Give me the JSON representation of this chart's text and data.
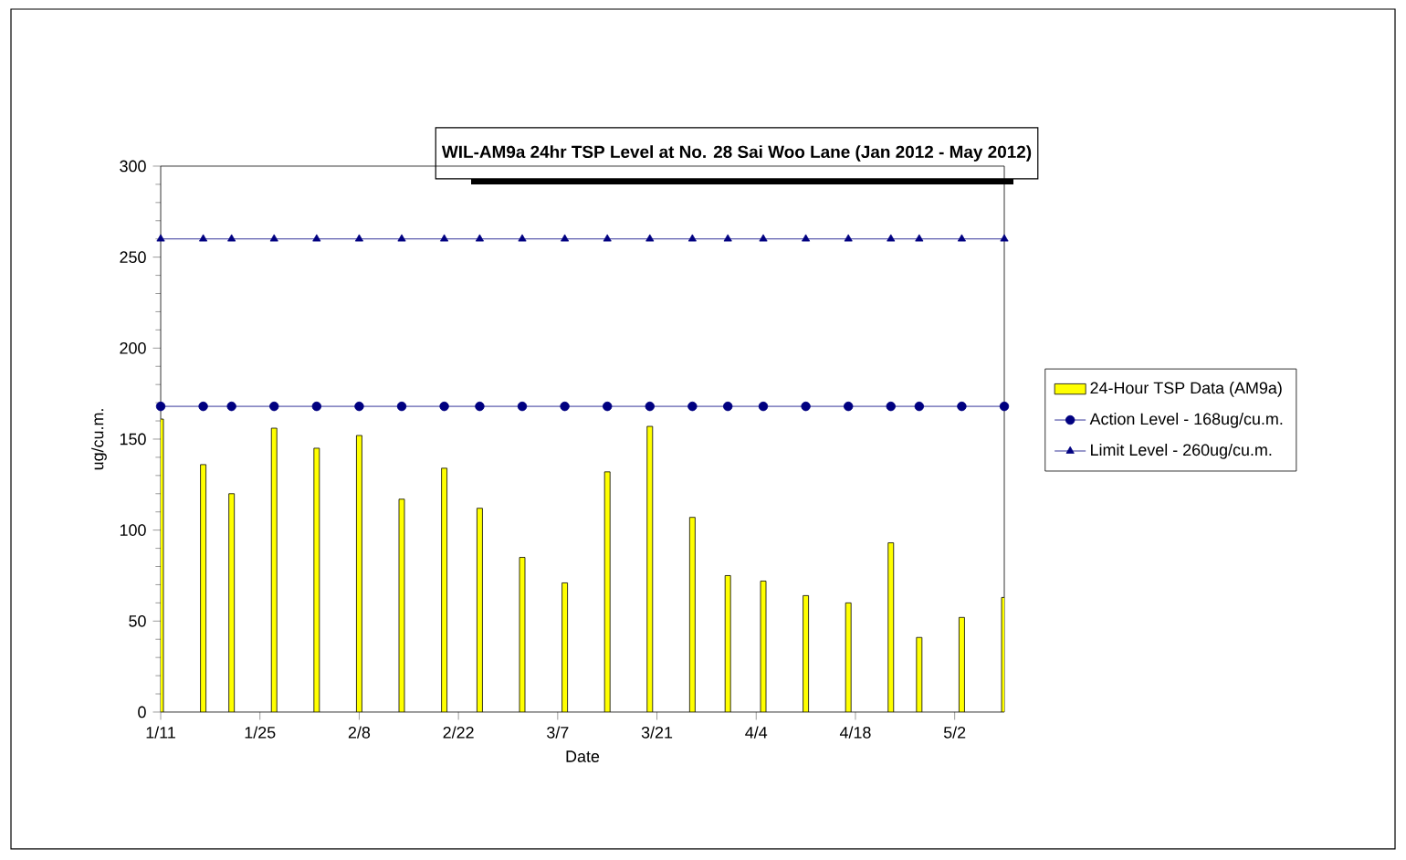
{
  "chart_data": {
    "type": "bar",
    "title": "WIL-AM9a 24hr TSP Level at No. 28 Sai Woo Lane (Jan 2012 - May 2012)",
    "xlabel": "Date",
    "ylabel": "ug/cu.m.",
    "x": [
      "2012-01-11",
      "2012-01-17",
      "2012-01-21",
      "2012-01-27",
      "2012-02-02",
      "2012-02-08",
      "2012-02-14",
      "2012-02-20",
      "2012-02-25",
      "2012-03-02",
      "2012-03-08",
      "2012-03-14",
      "2012-03-20",
      "2012-03-26",
      "2012-03-31",
      "2012-04-05",
      "2012-04-11",
      "2012-04-17",
      "2012-04-23",
      "2012-04-27",
      "2012-05-03",
      "2012-05-09"
    ],
    "series": [
      {
        "name": "24-Hour TSP Data (AM9a)",
        "color": "#ffff00",
        "values": [
          161,
          136,
          120,
          156,
          145,
          152,
          117,
          134,
          112,
          85,
          71,
          132,
          157,
          107,
          75,
          72,
          64,
          60,
          93,
          41,
          52,
          63
        ]
      },
      {
        "type": "line",
        "name": "Action Level - 168ug/cu.m.",
        "color": "#000080",
        "marker": "circle",
        "values": [
          168,
          168,
          168,
          168,
          168,
          168,
          168,
          168,
          168,
          168,
          168,
          168,
          168,
          168,
          168,
          168,
          168,
          168,
          168,
          168,
          168,
          168
        ]
      },
      {
        "type": "line",
        "name": "Limit Level - 260ug/cu.m.",
        "color": "#000080",
        "marker": "triangle",
        "values": [
          260,
          260,
          260,
          260,
          260,
          260,
          260,
          260,
          260,
          260,
          260,
          260,
          260,
          260,
          260,
          260,
          260,
          260,
          260,
          260,
          260,
          260
        ]
      }
    ],
    "xlim": [
      "2012-01-11",
      "2012-05-09"
    ],
    "xticks": [
      {
        "value": "2012-01-11",
        "label": "1/11"
      },
      {
        "value": "2012-01-25",
        "label": "1/25"
      },
      {
        "value": "2012-02-08",
        "label": "2/8"
      },
      {
        "value": "2012-02-22",
        "label": "2/22"
      },
      {
        "value": "2012-03-07",
        "label": "3/7"
      },
      {
        "value": "2012-03-21",
        "label": "3/21"
      },
      {
        "value": "2012-04-04",
        "label": "4/4"
      },
      {
        "value": "2012-04-18",
        "label": "4/18"
      },
      {
        "value": "2012-05-02",
        "label": "5/2"
      }
    ],
    "ylim": [
      0,
      300
    ],
    "yticks": [
      0,
      50,
      100,
      150,
      200,
      250,
      300
    ],
    "grid": false,
    "legend": "right"
  }
}
